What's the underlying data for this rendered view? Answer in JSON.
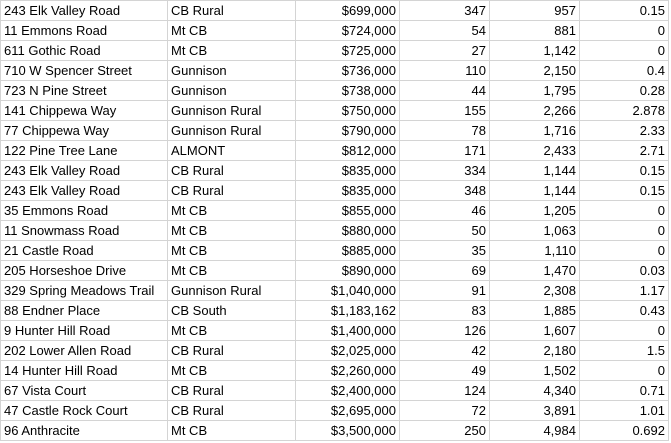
{
  "rows": [
    [
      "243 Elk Valley Road",
      "CB Rural",
      "$699,000",
      "347",
      "957",
      "0.15"
    ],
    [
      "11 Emmons Road",
      "Mt CB",
      "$724,000",
      "54",
      "881",
      "0"
    ],
    [
      "611 Gothic Road",
      "Mt CB",
      "$725,000",
      "27",
      "1,142",
      "0"
    ],
    [
      "710 W Spencer Street",
      "Gunnison",
      "$736,000",
      "110",
      "2,150",
      "0.4"
    ],
    [
      "723 N Pine Street",
      "Gunnison",
      "$738,000",
      "44",
      "1,795",
      "0.28"
    ],
    [
      "141 Chippewa Way",
      "Gunnison Rural",
      "$750,000",
      "155",
      "2,266",
      "2.878"
    ],
    [
      "77 Chippewa Way",
      "Gunnison Rural",
      "$790,000",
      "78",
      "1,716",
      "2.33"
    ],
    [
      "122 Pine Tree Lane",
      "ALMONT",
      "$812,000",
      "171",
      "2,433",
      "2.71"
    ],
    [
      "243 Elk Valley Road",
      "CB Rural",
      "$835,000",
      "334",
      "1,144",
      "0.15"
    ],
    [
      "243 Elk Valley Road",
      "CB Rural",
      "$835,000",
      "348",
      "1,144",
      "0.15"
    ],
    [
      "35 Emmons Road",
      "Mt CB",
      "$855,000",
      "46",
      "1,205",
      "0"
    ],
    [
      "11 Snowmass Road",
      "Mt CB",
      "$880,000",
      "50",
      "1,063",
      "0"
    ],
    [
      "21 Castle Road",
      "Mt CB",
      "$885,000",
      "35",
      "1,110",
      "0"
    ],
    [
      "205 Horseshoe Drive",
      "Mt CB",
      "$890,000",
      "69",
      "1,470",
      "0.03"
    ],
    [
      "329 Spring Meadows Trail",
      "Gunnison Rural",
      "$1,040,000",
      "91",
      "2,308",
      "1.17"
    ],
    [
      "88 Endner Place",
      "CB South",
      "$1,183,162",
      "83",
      "1,885",
      "0.43"
    ],
    [
      "9 Hunter Hill Road",
      "Mt CB",
      "$1,400,000",
      "126",
      "1,607",
      "0"
    ],
    [
      "202 Lower Allen Road",
      "CB Rural",
      "$2,025,000",
      "42",
      "2,180",
      "1.5"
    ],
    [
      "14 Hunter Hill Road",
      "Mt CB",
      "$2,260,000",
      "49",
      "1,502",
      "0"
    ],
    [
      "67 Vista Court",
      "CB Rural",
      "$2,400,000",
      "124",
      "4,340",
      "0.71"
    ],
    [
      "47 Castle Rock Court",
      "CB Rural",
      "$2,695,000",
      "72",
      "3,891",
      "1.01"
    ],
    [
      "96 Anthracite",
      "Mt CB",
      "$3,500,000",
      "250",
      "4,984",
      "0.692"
    ]
  ]
}
